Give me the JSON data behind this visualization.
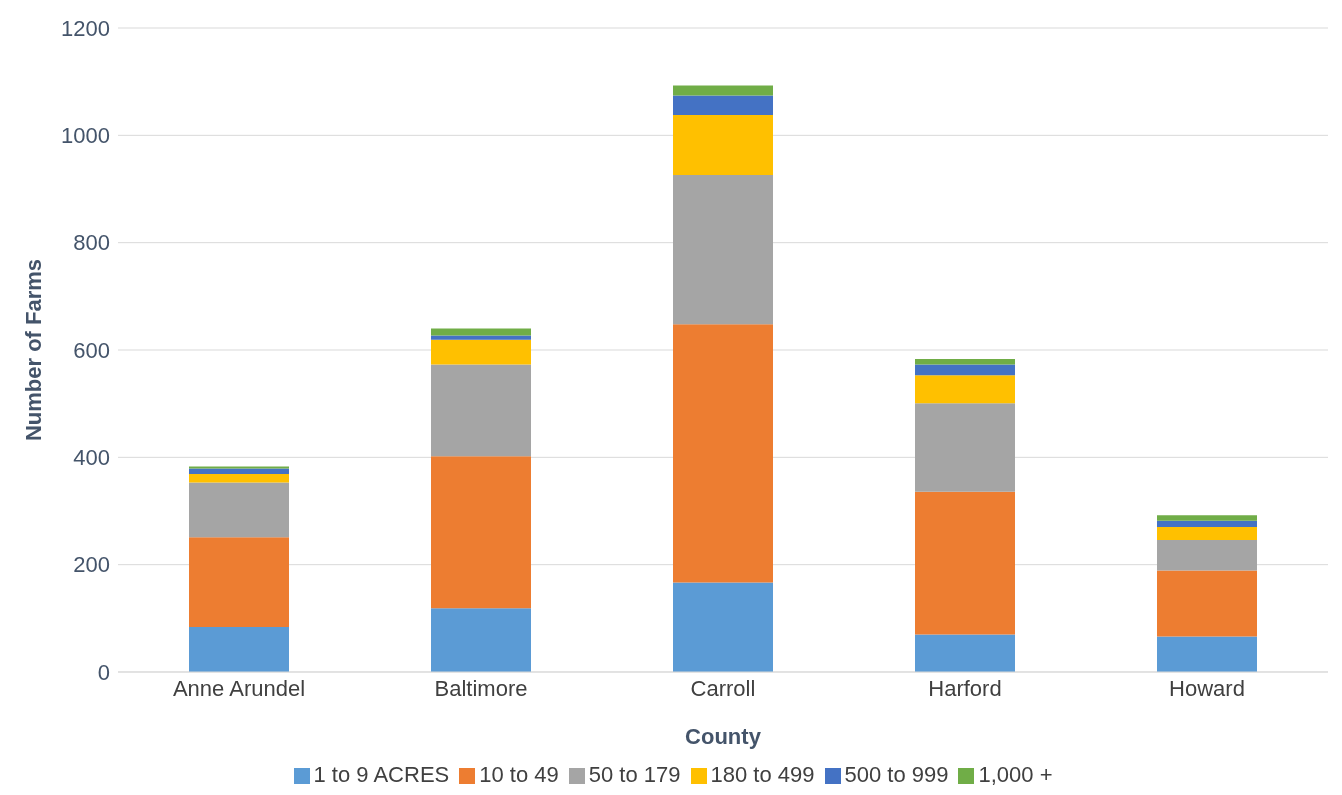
{
  "chart_data": {
    "type": "bar",
    "stacked": true,
    "xlabel": "County",
    "ylabel": "Number of Farms",
    "categories": [
      "Anne Arundel",
      "Baltimore",
      "Carroll",
      "Harford",
      "Howard"
    ],
    "series": [
      {
        "name": "1 to 9 ACRES",
        "color": "#5b9bd5",
        "values": [
          84,
          119,
          167,
          70,
          66
        ]
      },
      {
        "name": "10 to 49",
        "color": "#ed7d31",
        "values": [
          167,
          283,
          481,
          266,
          123
        ]
      },
      {
        "name": "50 to 179",
        "color": "#a5a5a5",
        "values": [
          102,
          171,
          278,
          165,
          57
        ]
      },
      {
        "name": "180 to 499",
        "color": "#ffc000",
        "values": [
          16,
          46,
          112,
          52,
          24
        ]
      },
      {
        "name": "500 to 999",
        "color": "#4472c4",
        "values": [
          10,
          8,
          36,
          20,
          12
        ]
      },
      {
        "name": "1,000 +",
        "color": "#70ad47",
        "values": [
          4,
          13,
          19,
          10,
          10
        ]
      }
    ],
    "ylim": [
      0,
      1200
    ],
    "yticks": [
      0,
      200,
      400,
      600,
      800,
      1000,
      1200
    ],
    "grid": "y",
    "legend": "bottom"
  }
}
